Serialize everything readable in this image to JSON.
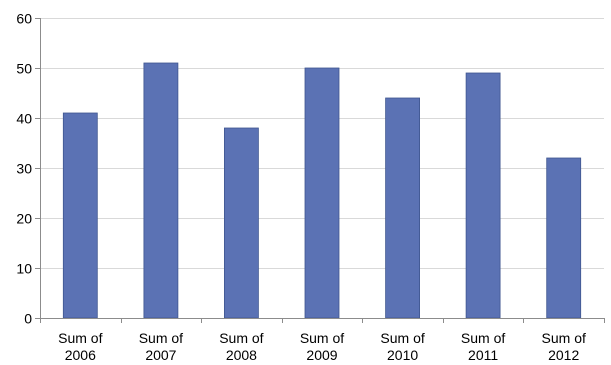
{
  "chart_data": {
    "type": "bar",
    "categories": [
      [
        "Sum of",
        "2006"
      ],
      [
        "Sum of",
        "2007"
      ],
      [
        "Sum of",
        "2008"
      ],
      [
        "Sum of",
        "2009"
      ],
      [
        "Sum of",
        "2010"
      ],
      [
        "Sum of",
        "2011"
      ],
      [
        "Sum of",
        "2012"
      ]
    ],
    "values": [
      41,
      51,
      38,
      50,
      44,
      49,
      32
    ],
    "ylim": [
      0,
      60
    ],
    "yticks": [
      0,
      10,
      20,
      30,
      40,
      50,
      60
    ],
    "grid": true,
    "legend": "none",
    "bar_color": "#5b72b4",
    "bar_edge_color": "#3f568f",
    "title": "",
    "xlabel": "",
    "ylabel": ""
  }
}
